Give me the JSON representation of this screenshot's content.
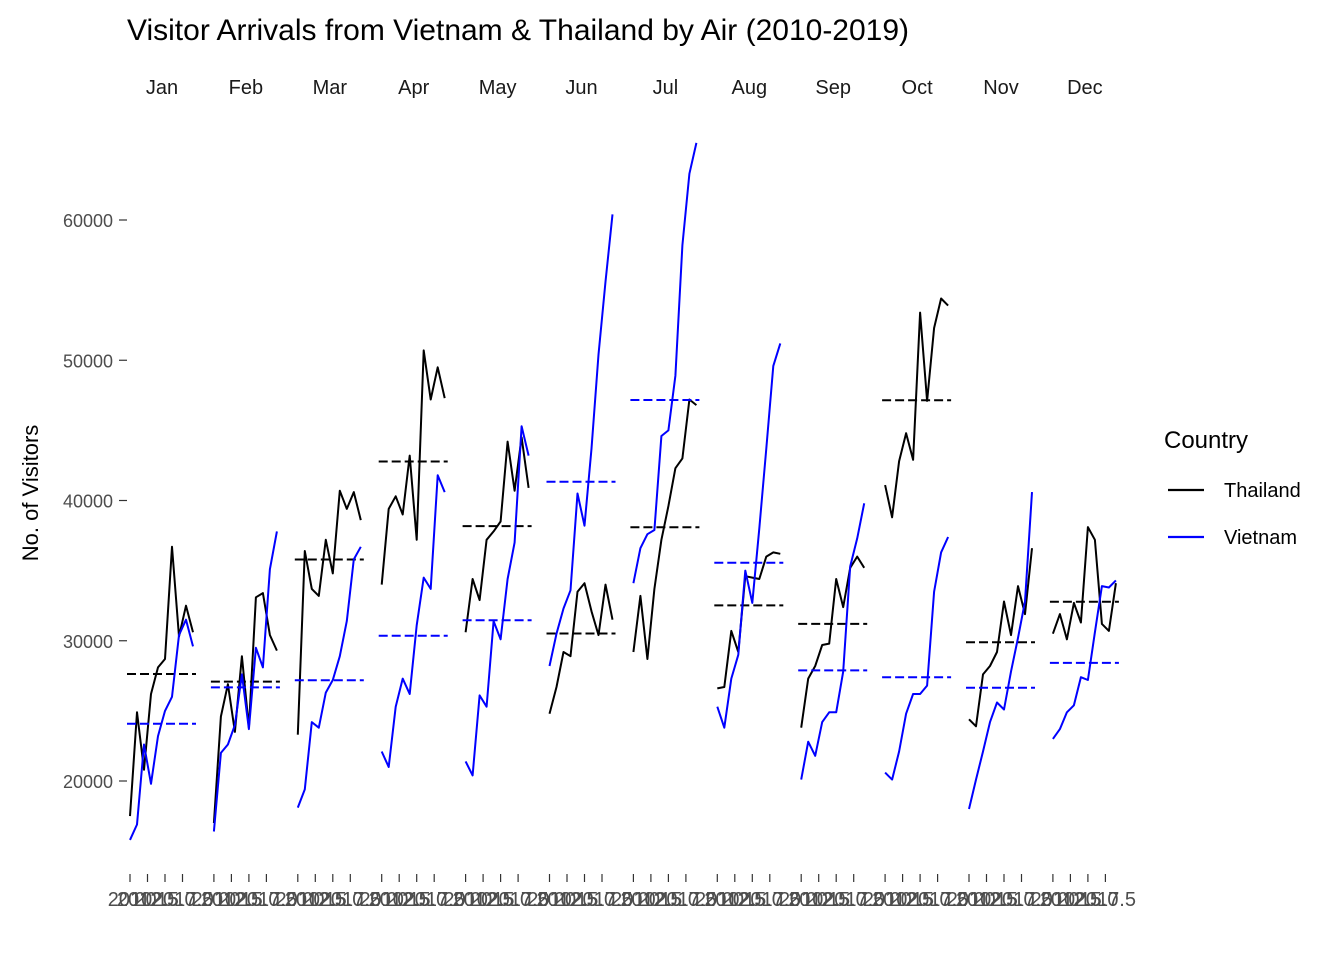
{
  "chart_data": {
    "type": "line",
    "title": "Visitor Arrivals from Vietnam & Thailand by Air (2010-2019)",
    "xlabel": "",
    "ylabel": "No. of Visitors",
    "y_ticks": [
      20000,
      30000,
      40000,
      50000,
      60000
    ],
    "ylim": [
      13000,
      67000
    ],
    "x_tick_labels": [
      "2010",
      "2012.5",
      "2015.0",
      "2017.5"
    ],
    "facet": "month",
    "months": [
      "Jan",
      "Feb",
      "Mar",
      "Apr",
      "May",
      "Jun",
      "Jul",
      "Aug",
      "Sep",
      "Oct",
      "Nov",
      "Dec"
    ],
    "years": [
      2010,
      2011,
      2012,
      2013,
      2014,
      2015,
      2016,
      2017,
      2018,
      2019
    ],
    "legend": {
      "title": "Country",
      "position": "right",
      "entries": [
        {
          "label": "Thailand",
          "color": "#000000"
        },
        {
          "label": "Vietnam",
          "color": "#0000ff"
        }
      ]
    },
    "mean_lines": "dashed horizontal line at each month's mean, per country",
    "series": [
      {
        "name": "Thailand",
        "color": "#000000",
        "values": [
          [
            17500,
            24900,
            20800,
            26200,
            28100,
            28700,
            36700,
            30300,
            32500,
            30600
          ],
          [
            17000,
            24600,
            26900,
            23500,
            28900,
            23800,
            33100,
            33400,
            30400,
            29300
          ],
          [
            23300,
            36400,
            33700,
            33200,
            37200,
            34800,
            40700,
            39400,
            40600,
            38600
          ],
          [
            34000,
            39400,
            40300,
            39000,
            43200,
            37200,
            50700,
            47200,
            49500,
            47300
          ],
          [
            30600,
            34400,
            32900,
            37200,
            37800,
            38500,
            44200,
            40700,
            44500,
            40900
          ],
          [
            24800,
            26700,
            29200,
            28900,
            33500,
            34100,
            32100,
            30400,
            34000,
            31500
          ],
          [
            29200,
            33200,
            28700,
            33700,
            37200,
            39600,
            42300,
            43000,
            47200,
            46800
          ],
          [
            26600,
            26700,
            30700,
            29200,
            34600,
            34500,
            34400,
            36000,
            36300,
            36200
          ],
          [
            23800,
            27300,
            28200,
            29700,
            29800,
            34400,
            32400,
            35200,
            36000,
            35200
          ],
          [
            41100,
            38800,
            42800,
            44800,
            42900,
            53400,
            47100,
            52300,
            54400,
            53900
          ],
          [
            24400,
            23900,
            27600,
            28200,
            29200,
            32800,
            30400,
            33900,
            31900,
            36600
          ],
          [
            30500,
            31900,
            30100,
            32700,
            31300,
            38100,
            37200,
            31200,
            30700,
            34100
          ]
        ]
      },
      {
        "name": "Vietnam",
        "color": "#0000ff",
        "values": [
          [
            15800,
            16900,
            22600,
            19800,
            23200,
            25000,
            26000,
            30400,
            31500,
            29600
          ],
          [
            16400,
            22000,
            22600,
            24000,
            27600,
            23700,
            29500,
            28100,
            35100,
            37800
          ],
          [
            18100,
            19400,
            24200,
            23800,
            26300,
            27200,
            28900,
            31400,
            35800,
            36700
          ],
          [
            22100,
            21000,
            25300,
            27300,
            26200,
            31100,
            34500,
            33700,
            41800,
            40600
          ],
          [
            21400,
            20400,
            26100,
            25300,
            31400,
            30100,
            34400,
            37000,
            45300,
            43200
          ],
          [
            28200,
            30500,
            32300,
            33600,
            40500,
            38200,
            43700,
            50400,
            55600,
            60400
          ],
          [
            34100,
            36600,
            37600,
            37900,
            44600,
            45000,
            48900,
            58200,
            63300,
            65500
          ],
          [
            25300,
            23800,
            27300,
            29000,
            35000,
            32700,
            38000,
            43700,
            49600,
            51200
          ],
          [
            20100,
            22800,
            21800,
            24200,
            24900,
            24900,
            27800,
            35300,
            37300,
            39800
          ],
          [
            20600,
            20100,
            22100,
            24800,
            26200,
            26200,
            26800,
            33500,
            36300,
            37400
          ],
          [
            18000,
            20100,
            22100,
            24200,
            25600,
            25100,
            27800,
            30200,
            32800,
            40600
          ],
          [
            23000,
            23700,
            24900,
            25400,
            27400,
            27200,
            30600,
            33900,
            33800,
            34300
          ]
        ]
      }
    ]
  }
}
